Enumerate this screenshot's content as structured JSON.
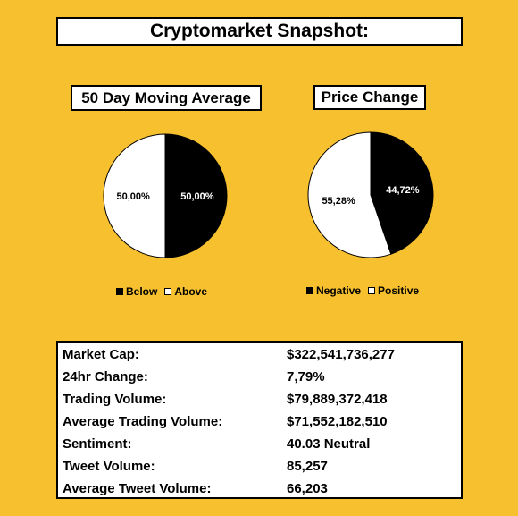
{
  "title": "Cryptomarket Snapshot:",
  "chart_data": [
    {
      "type": "pie",
      "title": "50 Day Moving Average",
      "labels": [
        "Below",
        "Above"
      ],
      "values": [
        50.0,
        50.0
      ],
      "value_labels": [
        "50,00%",
        "50,00%"
      ],
      "colors": [
        "#000000",
        "#ffffff"
      ],
      "legend": "bottom"
    },
    {
      "type": "pie",
      "title": "Price Change",
      "labels": [
        "Negative",
        "Positive"
      ],
      "values": [
        44.72,
        55.28
      ],
      "value_labels": [
        "44,72%",
        "55,28%"
      ],
      "colors": [
        "#000000",
        "#ffffff"
      ],
      "legend": "bottom"
    }
  ],
  "stats": [
    {
      "label": "Market Cap:",
      "value": "$322,541,736,277"
    },
    {
      "label": "24hr Change:",
      "value": "7,79%"
    },
    {
      "label": "Trading Volume:",
      "value": "$79,889,372,418"
    },
    {
      "label": "Average Trading Volume:",
      "value": "$71,552,182,510"
    },
    {
      "label": "Sentiment:",
      "value": "40.03 Neutral"
    },
    {
      "label": "Tweet Volume:",
      "value": "85,257"
    },
    {
      "label": "Average Tweet Volume:",
      "value": "66,203"
    }
  ]
}
